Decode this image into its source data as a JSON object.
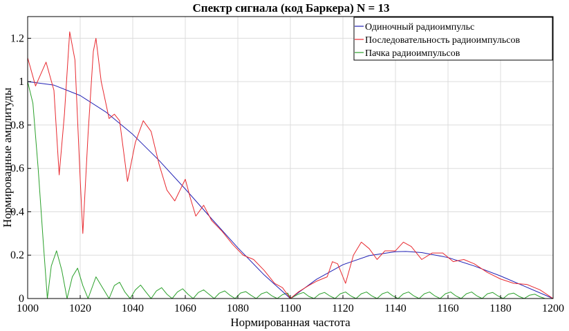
{
  "chart_data": {
    "type": "line",
    "title": "Спектр сигнала (код Баркера)  N = 13",
    "xlabel": "Нормированная частота",
    "ylabel": "Нормированные амплитуды",
    "xlim": [
      1000,
      1200
    ],
    "ylim": [
      0,
      1.3
    ],
    "xticks": [
      1000,
      1020,
      1040,
      1060,
      1080,
      1100,
      1120,
      1140,
      1160,
      1180,
      1200
    ],
    "yticks": [
      0,
      0.2,
      0.4,
      0.6,
      0.8,
      1,
      1.2
    ],
    "ytick_labels": [
      "0",
      "0.2",
      "0.4",
      "0.6",
      "0.8",
      "1",
      "1.2"
    ],
    "grid": true,
    "legend_position": "top-right",
    "series": [
      {
        "name": "Одиночный радиоимпульс",
        "color": "#1f1fb4",
        "x": [
          1000,
          1010,
          1020,
          1030,
          1040,
          1050,
          1060,
          1070,
          1080,
          1090,
          1100,
          1110,
          1120,
          1130,
          1140,
          1144,
          1150,
          1160,
          1170,
          1180,
          1190,
          1200
        ],
        "y": [
          1.0,
          0.984,
          0.936,
          0.858,
          0.757,
          0.637,
          0.505,
          0.368,
          0.234,
          0.109,
          0.0,
          0.089,
          0.156,
          0.198,
          0.216,
          0.217,
          0.212,
          0.189,
          0.15,
          0.104,
          0.052,
          0.0
        ]
      },
      {
        "name": "Последовательность радиоимпульсов",
        "color": "#e8282e",
        "x": [
          1000,
          1003,
          1007,
          1010,
          1012,
          1014,
          1016,
          1018,
          1020,
          1021,
          1023,
          1025,
          1026,
          1028,
          1031,
          1033,
          1035,
          1038,
          1041,
          1044,
          1047,
          1050,
          1053,
          1056,
          1058,
          1060,
          1062,
          1064,
          1067,
          1070,
          1074,
          1078,
          1082,
          1086,
          1090,
          1094,
          1097,
          1100,
          1103,
          1107,
          1110,
          1114,
          1116,
          1118,
          1121,
          1124,
          1127,
          1130,
          1133,
          1136,
          1140,
          1143,
          1146,
          1150,
          1154,
          1158,
          1162,
          1166,
          1170,
          1175,
          1180,
          1185,
          1190,
          1195,
          1200
        ],
        "y": [
          1.11,
          0.98,
          1.09,
          0.96,
          0.57,
          0.85,
          1.23,
          1.1,
          0.55,
          0.3,
          0.76,
          1.14,
          1.2,
          1.0,
          0.83,
          0.85,
          0.82,
          0.54,
          0.72,
          0.82,
          0.77,
          0.62,
          0.5,
          0.45,
          0.5,
          0.55,
          0.46,
          0.38,
          0.43,
          0.36,
          0.31,
          0.25,
          0.2,
          0.18,
          0.13,
          0.07,
          0.05,
          0.0,
          0.03,
          0.06,
          0.08,
          0.1,
          0.17,
          0.16,
          0.07,
          0.2,
          0.26,
          0.23,
          0.18,
          0.22,
          0.22,
          0.26,
          0.24,
          0.18,
          0.21,
          0.21,
          0.17,
          0.18,
          0.16,
          0.12,
          0.09,
          0.07,
          0.065,
          0.04,
          0.0
        ]
      },
      {
        "name": "Пачка радиоимпульсов",
        "color": "#2aa02a",
        "x": [
          1000,
          1002,
          1004,
          1006,
          1007.5,
          1009,
          1011,
          1013,
          1015,
          1017,
          1019,
          1021,
          1023,
          1026,
          1029,
          1031,
          1033,
          1035,
          1037,
          1039,
          1041,
          1043,
          1045,
          1047,
          1049,
          1051,
          1053,
          1055,
          1057,
          1059,
          1061,
          1063,
          1065,
          1067,
          1069,
          1071,
          1073,
          1075,
          1077,
          1079,
          1081,
          1083,
          1085,
          1087,
          1089,
          1091,
          1093,
          1095,
          1097,
          1099,
          1100,
          1103,
          1105,
          1107,
          1109,
          1111,
          1113,
          1115,
          1117,
          1119,
          1121,
          1123,
          1125,
          1127,
          1129,
          1131,
          1133,
          1135,
          1137,
          1139,
          1141,
          1143,
          1145,
          1147,
          1149,
          1151,
          1153,
          1155,
          1157,
          1159,
          1161,
          1163,
          1165,
          1167,
          1169,
          1171,
          1173,
          1175,
          1177,
          1179,
          1181,
          1183,
          1185,
          1187,
          1189,
          1191,
          1193,
          1195,
          1197,
          1200
        ],
        "y": [
          1.0,
          0.9,
          0.6,
          0.25,
          0.0,
          0.15,
          0.22,
          0.13,
          0.0,
          0.1,
          0.14,
          0.06,
          0.0,
          0.1,
          0.04,
          0.0,
          0.06,
          0.075,
          0.03,
          0.0,
          0.04,
          0.062,
          0.03,
          0.0,
          0.035,
          0.05,
          0.02,
          0.0,
          0.03,
          0.045,
          0.02,
          0.0,
          0.028,
          0.04,
          0.02,
          0.0,
          0.025,
          0.035,
          0.015,
          0.0,
          0.025,
          0.032,
          0.015,
          0.0,
          0.022,
          0.03,
          0.012,
          0.0,
          0.018,
          0.025,
          0.0,
          0.02,
          0.028,
          0.01,
          0.0,
          0.02,
          0.028,
          0.012,
          0.0,
          0.022,
          0.03,
          0.012,
          0.0,
          0.022,
          0.03,
          0.012,
          0.0,
          0.022,
          0.03,
          0.012,
          0.0,
          0.022,
          0.03,
          0.012,
          0.0,
          0.022,
          0.03,
          0.012,
          0.0,
          0.022,
          0.03,
          0.012,
          0.0,
          0.022,
          0.03,
          0.012,
          0.0,
          0.022,
          0.028,
          0.012,
          0.0,
          0.02,
          0.025,
          0.01,
          0.0,
          0.015,
          0.02,
          0.008,
          0.0,
          0.0
        ]
      }
    ]
  }
}
